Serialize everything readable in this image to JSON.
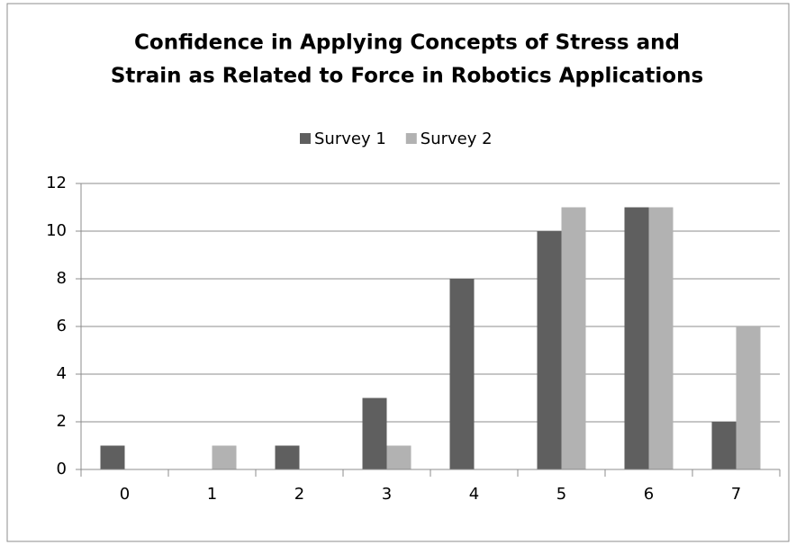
{
  "chart_data": {
    "type": "bar",
    "title": [
      "Confidence in Applying Concepts of Stress and",
      "Strain as Related to Force in Robotics Applications"
    ],
    "categories": [
      "0",
      "1",
      "2",
      "3",
      "4",
      "5",
      "6",
      "7"
    ],
    "series": [
      {
        "name": "Survey 1",
        "color": "#5f5f5f",
        "values": [
          1,
          0,
          1,
          3,
          8,
          10,
          11,
          2
        ]
      },
      {
        "name": "Survey 2",
        "color": "#b2b2b2",
        "values": [
          0,
          1,
          0,
          1,
          0,
          11,
          11,
          6
        ]
      }
    ],
    "ylim": [
      0,
      12
    ],
    "yticks": [
      0,
      2,
      4,
      6,
      8,
      10,
      12
    ],
    "grid": true,
    "legend": "top"
  }
}
